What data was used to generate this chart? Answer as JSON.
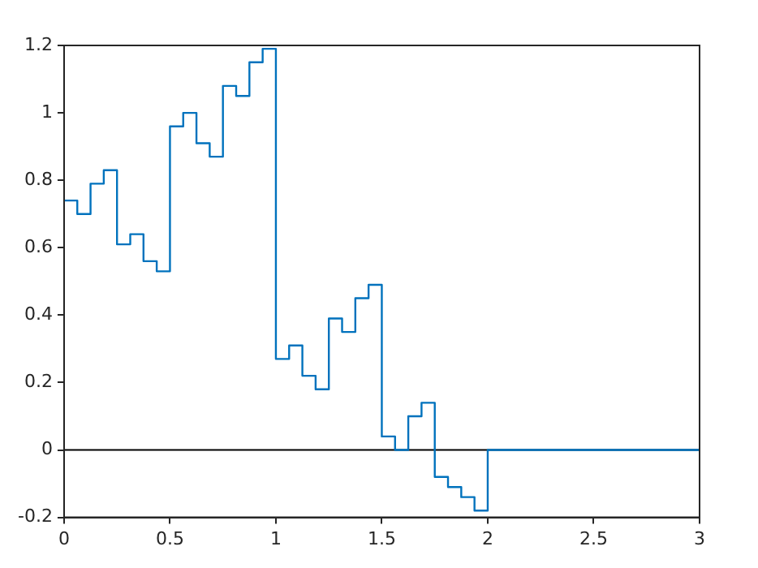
{
  "chart_data": {
    "type": "step",
    "x": [
      0,
      0.0625,
      0.125,
      0.1875,
      0.25,
      0.3125,
      0.375,
      0.4375,
      0.5,
      0.5625,
      0.625,
      0.6875,
      0.75,
      0.8125,
      0.875,
      0.9375,
      1,
      1.0625,
      1.125,
      1.1875,
      1.25,
      1.3125,
      1.375,
      1.4375,
      1.5,
      1.5625,
      1.625,
      1.6875,
      1.75,
      1.8125,
      1.875,
      1.9375,
      2,
      3
    ],
    "series": [
      {
        "color": "#0072bd",
        "values": [
          0.74,
          0.7,
          0.79,
          0.83,
          0.61,
          0.64,
          0.56,
          0.53,
          0.96,
          1.0,
          0.91,
          0.87,
          1.08,
          1.05,
          1.15,
          1.19,
          0.27,
          0.31,
          0.22,
          0.18,
          0.39,
          0.35,
          0.45,
          0.49,
          0.04,
          0.0,
          0.1,
          0.14,
          -0.08,
          -0.11,
          -0.14,
          -0.18,
          0,
          0
        ]
      }
    ],
    "xlim": [
      0,
      3
    ],
    "xticks": [
      0,
      0.5,
      1,
      1.5,
      2,
      2.5,
      3
    ],
    "ylim": [
      -0.2,
      1.2
    ],
    "yticks": [
      -0.2,
      0,
      0.2,
      0.4,
      0.6,
      0.8,
      1,
      1.2
    ],
    "ref_lines": [
      {
        "axis": "y",
        "value": 0,
        "color": "#000000"
      }
    ],
    "grid": false,
    "legend": false
  }
}
